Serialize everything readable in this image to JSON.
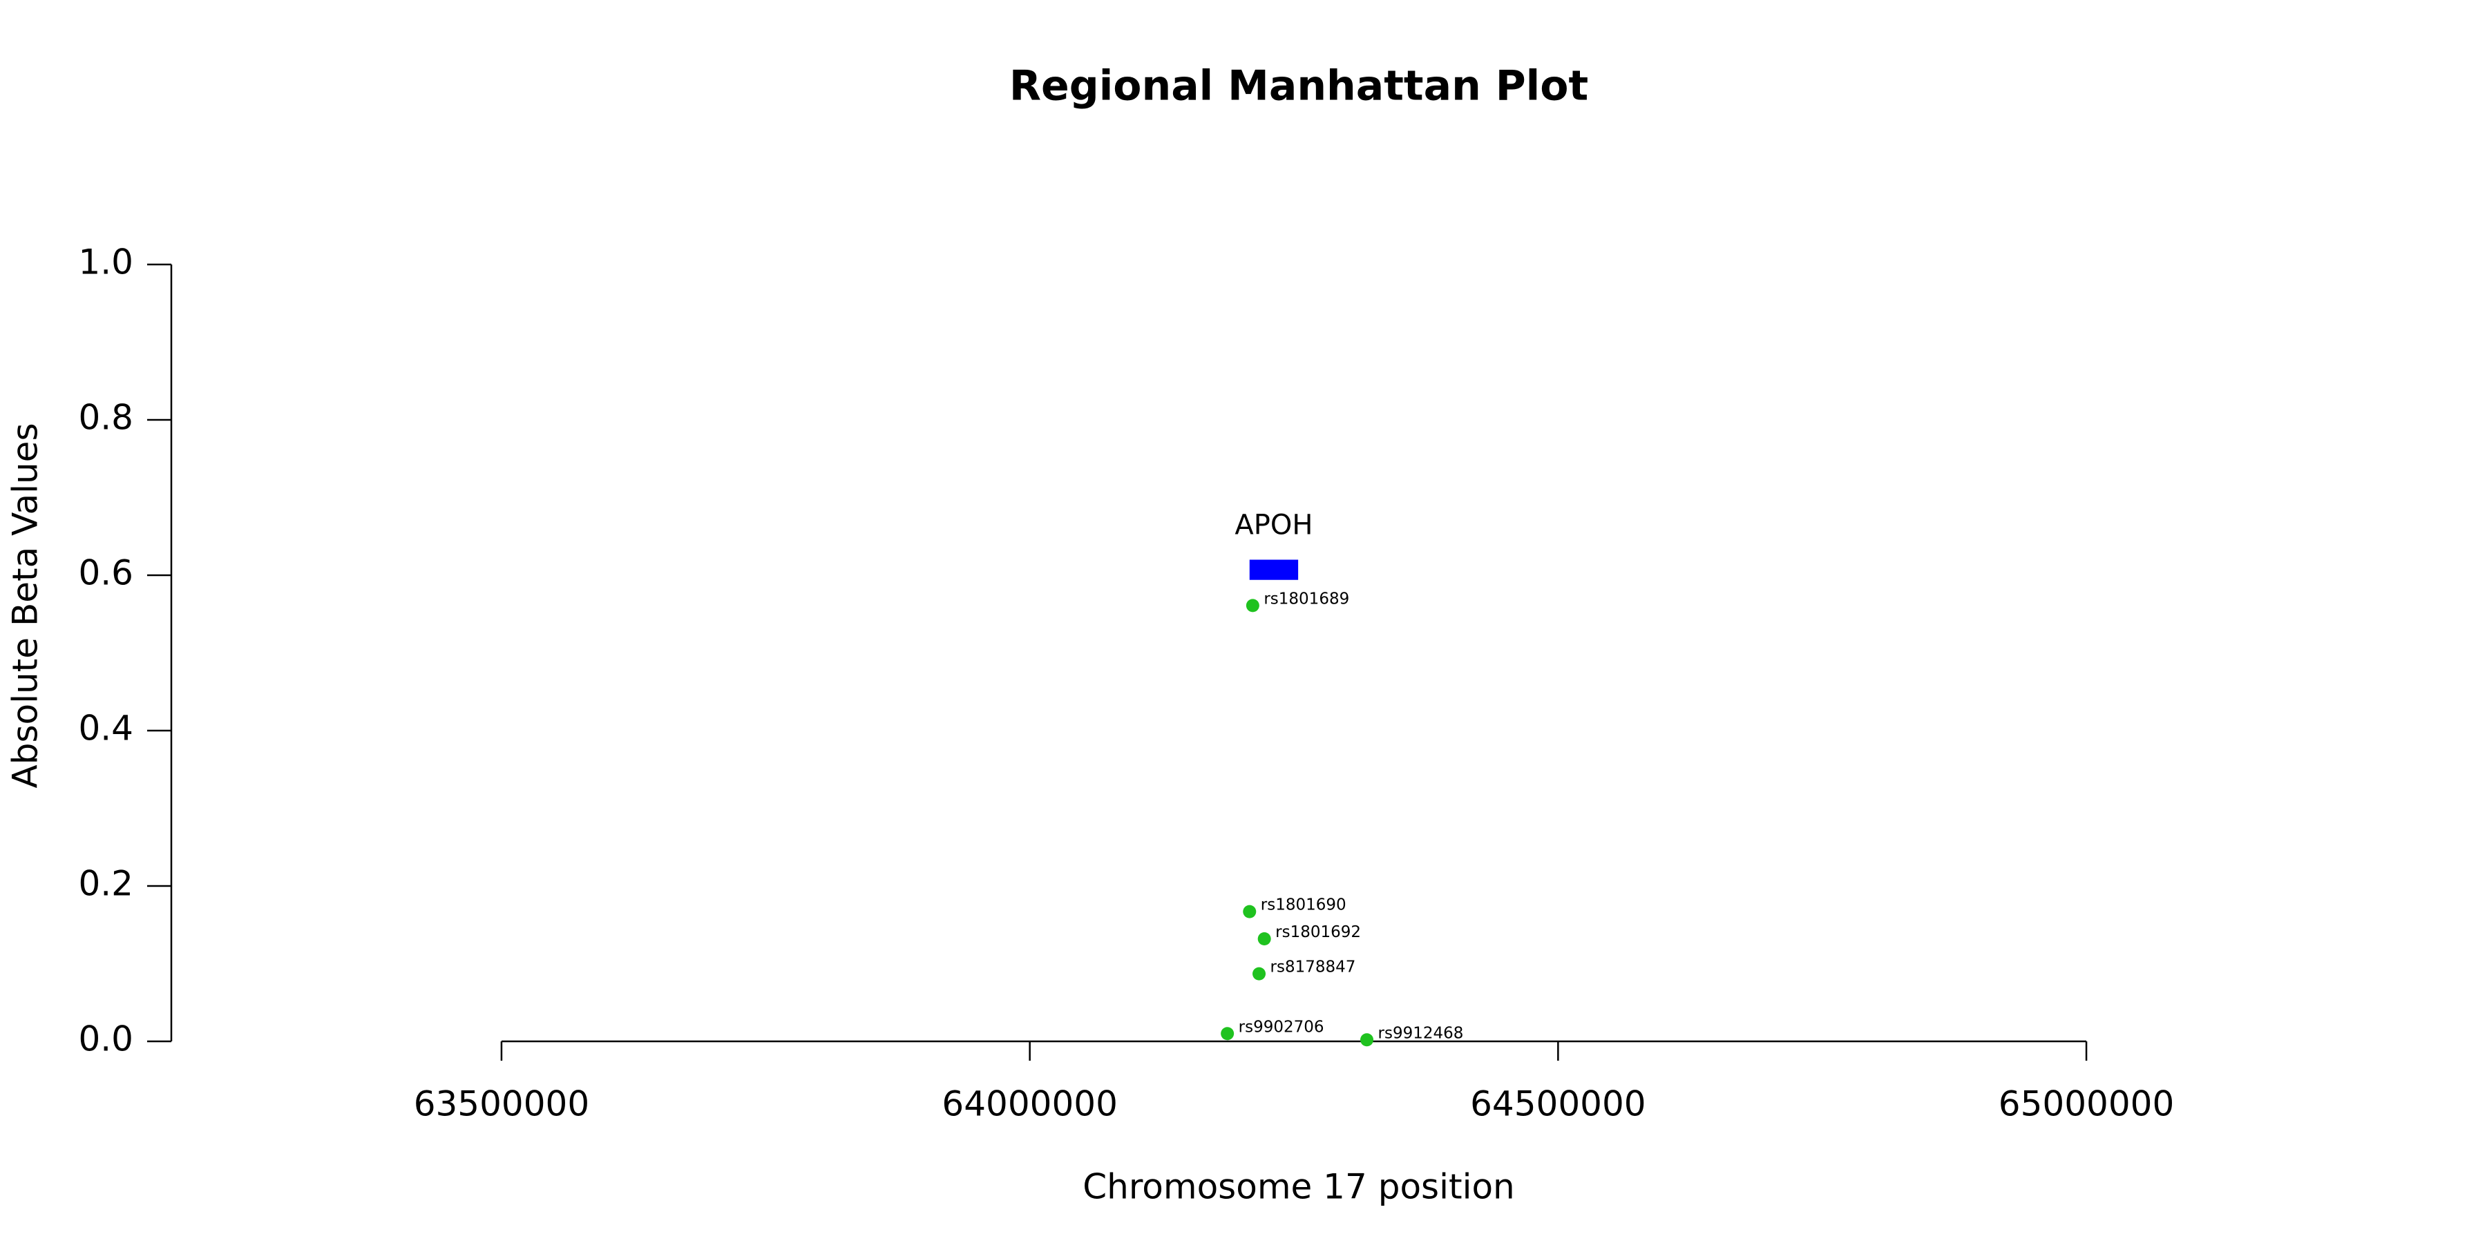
{
  "chart_data": {
    "type": "scatter",
    "title": "Regional Manhattan Plot",
    "x_label": "Chromosome 17 position",
    "y_label": "Absolute Beta Values",
    "xlim": [
      63187500,
      65312500
    ],
    "ylim": [
      0,
      1
    ],
    "xticks": [
      63500000,
      64000000,
      64500000,
      65000000
    ],
    "yticks": [
      {
        "value": 0,
        "label": "0.0"
      },
      {
        "value": 0.2,
        "label": "0.2"
      },
      {
        "value": 0.4,
        "label": "0.4"
      },
      {
        "value": 0.6,
        "label": "0.6"
      },
      {
        "value": 0.8,
        "label": "0.8"
      },
      {
        "value": 1,
        "label": "1.0"
      }
    ],
    "grid": false,
    "series": [
      {
        "color": "#1fc21f",
        "labels": [
          "rs1801689",
          "rs1801690",
          "rs1801692",
          "rs8178847",
          "rs9902706",
          "rs9912468"
        ],
        "x": [
          64211000,
          64208000,
          64222000,
          64217000,
          64187000,
          64319000
        ],
        "values": [
          0.561,
          0.167,
          0.132,
          0.087,
          0.01,
          0.002
        ]
      }
    ],
    "genes": [
      {
        "name": "APOH",
        "start": 64208000,
        "end": 64254000,
        "ylow": 0.594,
        "yhigh": 0.62,
        "color": "#0000ff"
      }
    ]
  }
}
